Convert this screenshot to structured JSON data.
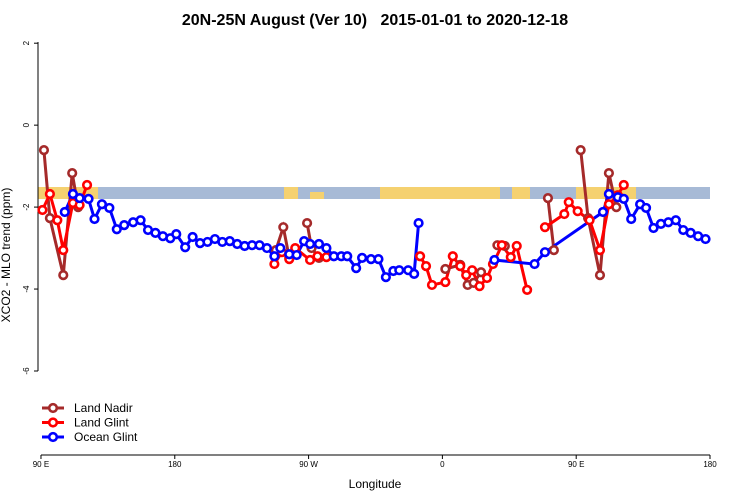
{
  "chart_data": {
    "type": "line",
    "title": "20N-25N August (Ver 10)   2015-01-01 to 2020-12-18",
    "x_label": "Longitude",
    "y_label": "XCO2 - MLO trend (ppm)",
    "xlim": [
      88,
      540
    ],
    "ylim": [
      -8.05,
      2.2
    ],
    "xticks": [
      {
        "value": 90,
        "label": "90 E"
      },
      180,
      {
        "value": 270,
        "label": "90 W"
      },
      {
        "value": 360,
        "label": "0"
      },
      {
        "value": 450,
        "label": "90 E"
      },
      {
        "value": 540,
        "label": "180"
      }
    ],
    "yticks": [
      2,
      0,
      -2,
      -4,
      -6
    ],
    "legend": "bottom-left",
    "series": [
      {
        "name": "Land Nadir",
        "color": "#a52a2a",
        "x": [
          92,
          96,
          105,
          111,
          115,
          null,
          248,
          253,
          257,
          null,
          269,
          272,
          277,
          null,
          362,
          372,
          377,
          381,
          386,
          null,
          397,
          402,
          null,
          431,
          435,
          null,
          453,
          458,
          466,
          472,
          477
        ],
        "values": [
          -0.61,
          -2.27,
          -3.66,
          -1.17,
          -2.0,
          null,
          -3.05,
          -2.49,
          -3.24,
          null,
          -2.39,
          -3.0,
          -3.24,
          null,
          -3.51,
          -3.41,
          -3.9,
          -3.85,
          -3.59,
          null,
          -2.93,
          -2.95,
          null,
          -1.78,
          -3.05,
          null,
          -0.61,
          -2.27,
          -3.66,
          -1.17,
          -2.0
        ]
      },
      {
        "name": "Land Glint",
        "color": "#ff0000",
        "x": [
          91,
          96,
          101,
          105,
          111.5,
          116,
          121,
          null,
          247,
          252,
          257,
          261,
          271,
          276,
          282,
          null,
          345,
          349,
          353,
          362,
          367,
          372,
          376,
          380,
          385,
          390,
          394,
          400,
          406,
          410,
          417,
          null,
          429,
          442,
          445,
          451,
          459,
          466,
          472,
          478,
          482
        ],
        "values": [
          -2.07,
          -1.68,
          -2.32,
          -3.05,
          -1.9,
          -1.95,
          -1.46,
          null,
          -3.39,
          -3.1,
          -3.27,
          -3.0,
          -3.29,
          -3.2,
          -3.22,
          null,
          -3.2,
          -3.44,
          -3.9,
          -3.83,
          -3.2,
          -3.44,
          -3.66,
          -3.54,
          -3.93,
          -3.73,
          -3.39,
          -2.93,
          -3.22,
          -2.95,
          -4.02,
          null,
          -2.49,
          -2.17,
          -1.88,
          -2.1,
          -2.32,
          -3.05,
          -1.93,
          -1.71,
          -1.46
        ]
      },
      {
        "name": "Ocean Glint",
        "color": "#0000ff",
        "x": [
          106,
          111.5,
          116,
          122,
          126,
          131,
          136,
          141,
          146,
          152,
          157,
          162,
          167,
          172,
          177,
          181,
          187,
          192,
          197,
          202,
          207,
          212,
          217,
          222,
          227,
          232,
          237,
          242,
          247,
          251,
          257,
          262,
          267,
          271,
          277,
          282,
          287,
          292,
          296,
          302,
          306,
          312,
          317,
          322,
          327,
          331,
          337,
          341,
          344,
          null,
          395,
          422,
          429,
          468,
          472,
          478,
          482,
          487,
          493,
          497,
          502,
          507,
          512,
          517,
          522,
          527,
          532,
          537
        ],
        "values": [
          -2.12,
          -1.68,
          -1.78,
          -1.8,
          -2.29,
          -1.93,
          -2.02,
          -2.54,
          -2.44,
          -2.37,
          -2.32,
          -2.56,
          -2.63,
          -2.71,
          -2.76,
          -2.66,
          -2.98,
          -2.73,
          -2.88,
          -2.85,
          -2.78,
          -2.85,
          -2.83,
          -2.9,
          -2.95,
          -2.93,
          -2.93,
          -3.0,
          -3.2,
          -3.0,
          -3.15,
          -3.17,
          -2.83,
          -2.9,
          -2.9,
          -3.0,
          -3.2,
          -3.2,
          -3.2,
          -3.49,
          -3.24,
          -3.27,
          -3.27,
          -3.71,
          -3.56,
          -3.54,
          -3.54,
          -3.63,
          -2.39,
          null,
          -3.29,
          -3.39,
          -3.1,
          -2.12,
          -1.68,
          -1.76,
          -1.8,
          -2.29,
          -1.93,
          -2.02,
          -2.51,
          -2.41,
          -2.37,
          -2.32,
          -2.56,
          -2.63,
          -2.71,
          -2.78
        ]
      }
    ]
  }
}
